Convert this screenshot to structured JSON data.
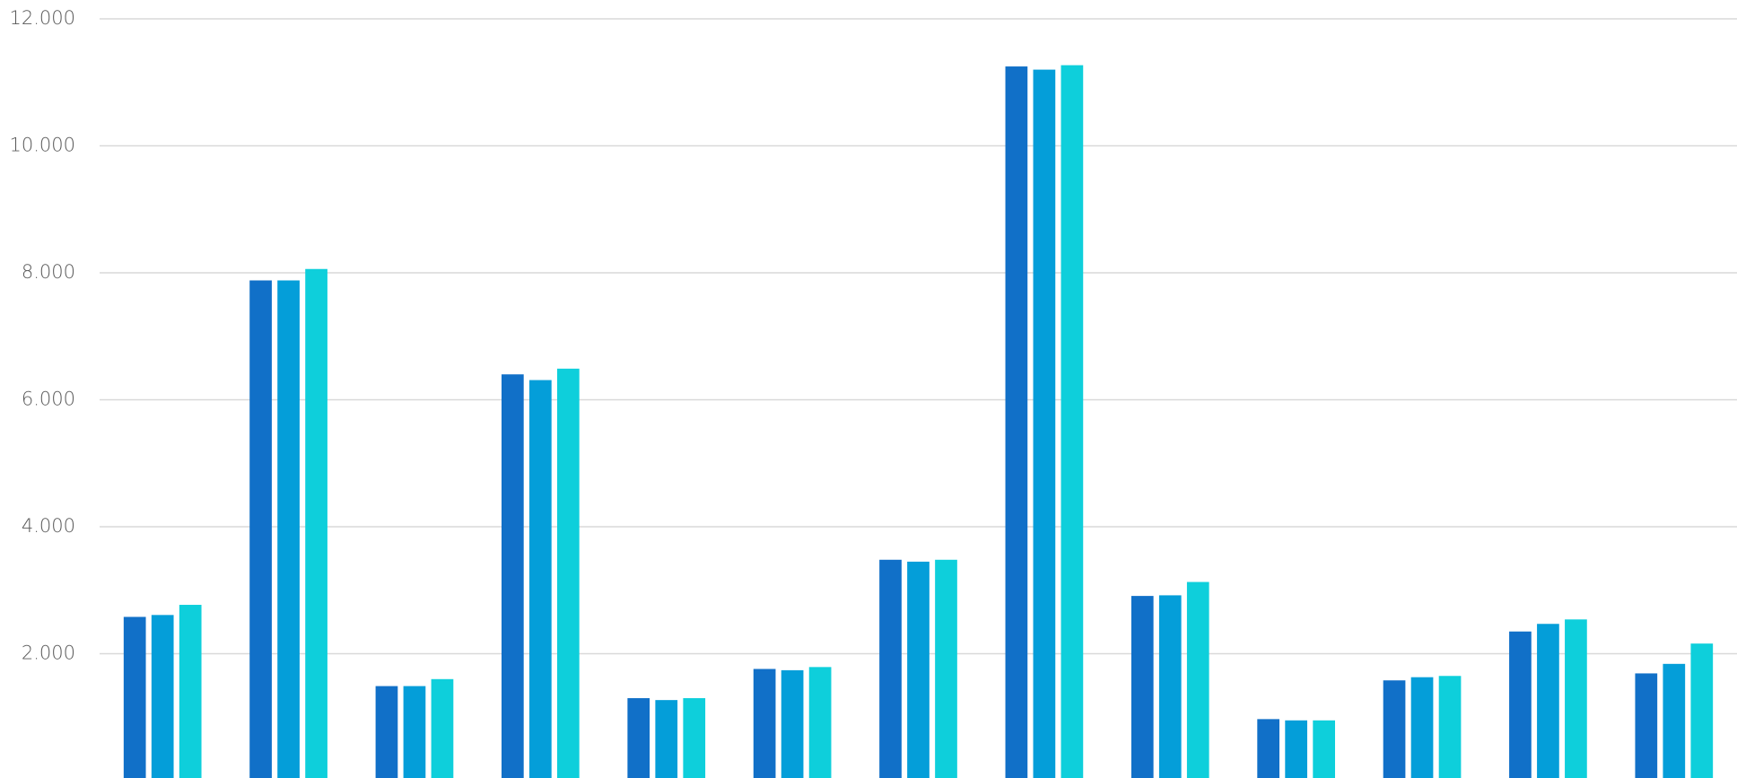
{
  "chart_data": {
    "type": "bar",
    "categories": [
      null,
      null,
      null,
      null,
      null,
      null,
      null,
      null,
      null,
      null,
      null,
      null,
      null
    ],
    "series": [
      {
        "color": "#1170c8",
        "values": [
          2580,
          7880,
          1490,
          6400,
          1300,
          1760,
          3480,
          11250,
          2910,
          970,
          1580,
          2350,
          1690
        ]
      },
      {
        "color": "#049ed9",
        "values": [
          2610,
          7880,
          1490,
          6310,
          1270,
          1740,
          3450,
          11200,
          2920,
          950,
          1630,
          2470,
          1840
        ]
      },
      {
        "color": "#0ecfdb",
        "values": [
          2770,
          8060,
          1600,
          6490,
          1300,
          1790,
          3480,
          11270,
          3130,
          950,
          1650,
          2540,
          2160
        ]
      }
    ],
    "ylim": [
      0,
      12000
    ],
    "yticks": [
      {
        "value": 2000,
        "label": "2.000"
      },
      {
        "value": 4000,
        "label": "4.000"
      },
      {
        "value": 6000,
        "label": "6.000"
      },
      {
        "value": 8000,
        "label": "8.000"
      },
      {
        "value": 10000,
        "label": "10.000"
      },
      {
        "value": 12000,
        "label": "12.000"
      }
    ],
    "grid": true
  }
}
